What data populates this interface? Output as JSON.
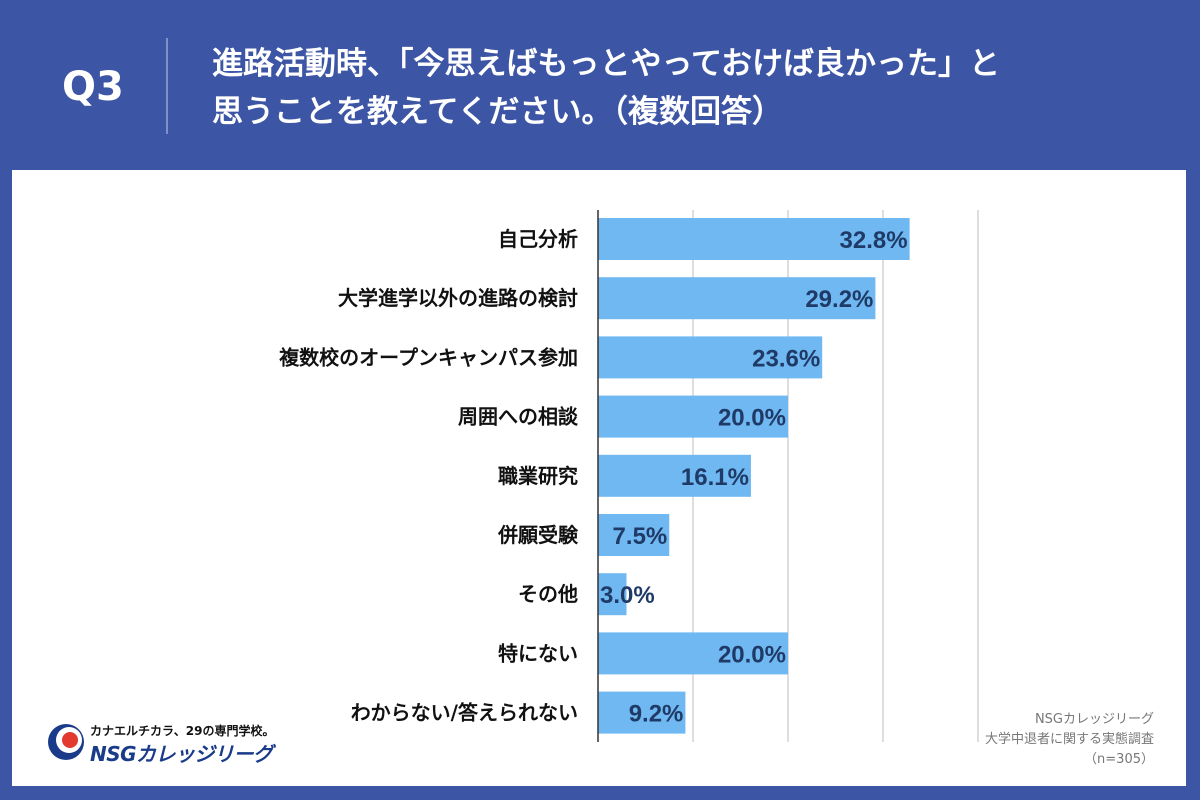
{
  "header": {
    "q_label": "Q3",
    "title_line1": "進路活動時、「今思えばもっとやっておけば良かった」と",
    "title_line2": "思うことを教えてください。（複数回答）"
  },
  "colors": {
    "background": "#3c55a4",
    "bar": "#6fb8f2",
    "value_text": "#1f3a66"
  },
  "chart_data": {
    "type": "bar",
    "orientation": "horizontal",
    "categories": [
      "自己分析",
      "大学進学以外の進路の検討",
      "複数校のオープンキャンパス参加",
      "周囲への相談",
      "職業研究",
      "併願受験",
      "その他",
      "特にない",
      "わからない/答えられない"
    ],
    "values": [
      32.8,
      29.2,
      23.6,
      20.0,
      16.1,
      7.5,
      3.0,
      20.0,
      9.2
    ],
    "value_labels": [
      "32.8%",
      "29.2%",
      "23.6%",
      "20.0%",
      "16.1%",
      "7.5%",
      "3.0%",
      "20.0%",
      "9.2%"
    ],
    "xlim": [
      0,
      40
    ],
    "gridlines": [
      10,
      20,
      30,
      40
    ],
    "unit": "%"
  },
  "logo": {
    "tagline": "カナエルチカラ、29の専門学校。",
    "name": "NSGカレッジリーグ",
    "icon": "nsg-logo-icon"
  },
  "source": {
    "line1": "NSGカレッジリーグ",
    "line2": "大学中退者に関する実態調査",
    "line3": "（n=305）"
  }
}
